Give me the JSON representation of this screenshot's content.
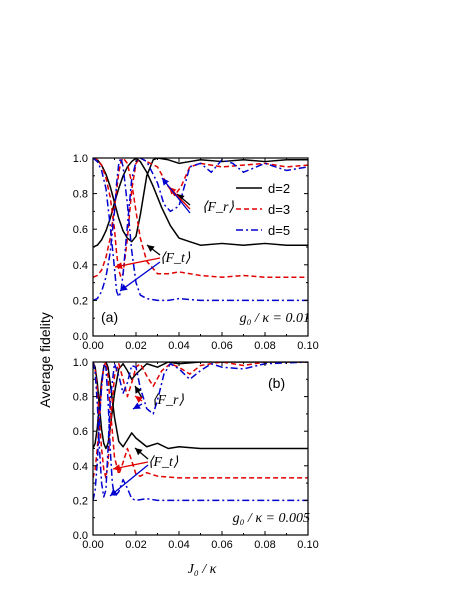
{
  "figure": {
    "ylabel": "Average fidelity",
    "xlabel": "J₀ / κ"
  },
  "legend": [
    "d=2",
    "d=3",
    "d=5"
  ],
  "colors": {
    "d2": "#000000",
    "d3": "#e00000",
    "d5": "#0000d0"
  },
  "chart_data": [
    {
      "type": "line",
      "panel_label": "(a)",
      "parameter_text": "g₀ / κ = 0.01",
      "xlim": [
        0,
        0.1
      ],
      "ylim": [
        0,
        1.0
      ],
      "xticks": [
        "0.00",
        "0.02",
        "0.04",
        "0.06",
        "0.08",
        "0.10"
      ],
      "yticks": [
        "0.0",
        "0.2",
        "0.4",
        "0.6",
        "0.8",
        "1.0"
      ],
      "annotations": [
        "⟨F_r⟩",
        "⟨F_t⟩"
      ],
      "series": [
        {
          "name": "d=2",
          "quantity": "F_t",
          "x": [
            0,
            0.002,
            0.004,
            0.006,
            0.008,
            0.01,
            0.012,
            0.014,
            0.016,
            0.018,
            0.02,
            0.022,
            0.025,
            0.028,
            0.032,
            0.036,
            0.04,
            0.045,
            0.05,
            0.06,
            0.07,
            0.08,
            0.09,
            0.1
          ],
          "y": [
            0.5,
            0.51,
            0.54,
            0.59,
            0.66,
            0.75,
            0.83,
            0.9,
            0.95,
            0.98,
            1.0,
            0.98,
            0.92,
            0.84,
            0.72,
            0.62,
            0.55,
            0.53,
            0.51,
            0.52,
            0.51,
            0.52,
            0.51,
            0.51
          ]
        },
        {
          "name": "d=2",
          "quantity": "F_r",
          "x": [
            0,
            0.002,
            0.004,
            0.006,
            0.008,
            0.01,
            0.012,
            0.014,
            0.016,
            0.018,
            0.02,
            0.022,
            0.025,
            0.028,
            0.03,
            0.035,
            0.04,
            0.045,
            0.05,
            0.06,
            0.07,
            0.08,
            0.09,
            0.1
          ],
          "y": [
            1.0,
            0.99,
            0.96,
            0.91,
            0.84,
            0.75,
            0.66,
            0.59,
            0.55,
            0.53,
            0.56,
            0.68,
            0.9,
            0.99,
            1.0,
            0.99,
            0.97,
            0.98,
            0.99,
            0.98,
            0.99,
            0.98,
            0.99,
            0.99
          ]
        },
        {
          "name": "d=3",
          "quantity": "F_t",
          "x": [
            0,
            0.002,
            0.004,
            0.006,
            0.008,
            0.01,
            0.011,
            0.012,
            0.013,
            0.014,
            0.016,
            0.018,
            0.02,
            0.022,
            0.025,
            0.03,
            0.035,
            0.04,
            0.05,
            0.06,
            0.07,
            0.08,
            0.09,
            0.1
          ],
          "y": [
            0.33,
            0.34,
            0.37,
            0.44,
            0.55,
            0.72,
            0.82,
            0.92,
            0.98,
            1.0,
            0.97,
            0.86,
            0.7,
            0.55,
            0.42,
            0.35,
            0.35,
            0.36,
            0.34,
            0.33,
            0.34,
            0.33,
            0.33,
            0.33
          ]
        },
        {
          "name": "d=3",
          "quantity": "F_r",
          "x": [
            0,
            0.002,
            0.004,
            0.006,
            0.008,
            0.01,
            0.011,
            0.012,
            0.013,
            0.014,
            0.016,
            0.018,
            0.02,
            0.022,
            0.025,
            0.03,
            0.035,
            0.038,
            0.041,
            0.045,
            0.05,
            0.06,
            0.07,
            0.08,
            0.09,
            0.1
          ],
          "y": [
            1.0,
            0.99,
            0.96,
            0.89,
            0.78,
            0.6,
            0.46,
            0.37,
            0.33,
            0.35,
            0.55,
            0.82,
            0.97,
            1.0,
            0.98,
            0.95,
            0.84,
            0.79,
            0.84,
            0.95,
            0.97,
            0.95,
            0.96,
            0.97,
            0.95,
            0.96
          ]
        },
        {
          "name": "d=5",
          "quantity": "F_t",
          "x": [
            0,
            0.002,
            0.004,
            0.006,
            0.008,
            0.01,
            0.011,
            0.012,
            0.013,
            0.014,
            0.016,
            0.018,
            0.02,
            0.022,
            0.025,
            0.03,
            0.035,
            0.04,
            0.05,
            0.06,
            0.07,
            0.08,
            0.09,
            0.1
          ],
          "y": [
            0.2,
            0.21,
            0.25,
            0.33,
            0.47,
            0.7,
            0.86,
            0.97,
            1.0,
            0.95,
            0.74,
            0.48,
            0.3,
            0.23,
            0.21,
            0.2,
            0.2,
            0.21,
            0.2,
            0.2,
            0.2,
            0.2,
            0.2,
            0.2
          ]
        },
        {
          "name": "d=5",
          "quantity": "F_r",
          "x": [
            0,
            0.002,
            0.004,
            0.006,
            0.008,
            0.01,
            0.011,
            0.012,
            0.013,
            0.014,
            0.016,
            0.018,
            0.02,
            0.022,
            0.025,
            0.03,
            0.033,
            0.036,
            0.04,
            0.045,
            0.05,
            0.055,
            0.06,
            0.065,
            0.07,
            0.08,
            0.09,
            0.1
          ],
          "y": [
            1.0,
            0.98,
            0.93,
            0.83,
            0.62,
            0.38,
            0.25,
            0.22,
            0.25,
            0.35,
            0.62,
            0.88,
            0.98,
            1.0,
            0.98,
            0.86,
            0.74,
            0.7,
            0.73,
            0.95,
            0.97,
            0.92,
            0.99,
            0.97,
            0.92,
            0.97,
            0.93,
            0.95
          ]
        }
      ]
    },
    {
      "type": "line",
      "panel_label": "(b)",
      "parameter_text": "g₀ / κ = 0.005",
      "xlim": [
        0,
        0.1
      ],
      "ylim": [
        0,
        1.0
      ],
      "xticks": [
        "0.00",
        "0.02",
        "0.04",
        "0.06",
        "0.08",
        "0.10"
      ],
      "yticks": [
        "0.0",
        "0.2",
        "0.4",
        "0.6",
        "0.8",
        "1.0"
      ],
      "annotations": [
        "⟨F_r⟩",
        "⟨F_t⟩"
      ],
      "series": [
        {
          "name": "d=2",
          "quantity": "F_t",
          "x": [
            0,
            0.001,
            0.002,
            0.003,
            0.004,
            0.005,
            0.006,
            0.007,
            0.008,
            0.01,
            0.012,
            0.014,
            0.016,
            0.018,
            0.02,
            0.025,
            0.03,
            0.035,
            0.04,
            0.05,
            0.06,
            0.07,
            0.08,
            0.1
          ],
          "y": [
            0.5,
            0.53,
            0.62,
            0.76,
            0.89,
            0.97,
            1.0,
            0.97,
            0.88,
            0.68,
            0.54,
            0.51,
            0.55,
            0.59,
            0.56,
            0.51,
            0.53,
            0.5,
            0.51,
            0.5,
            0.5,
            0.5,
            0.5,
            0.5
          ]
        },
        {
          "name": "d=2",
          "quantity": "F_r",
          "x": [
            0,
            0.001,
            0.002,
            0.003,
            0.004,
            0.005,
            0.006,
            0.007,
            0.008,
            0.01,
            0.012,
            0.014,
            0.016,
            0.018,
            0.02,
            0.025,
            0.03,
            0.035,
            0.04,
            0.05,
            0.06,
            0.07,
            0.08,
            0.1
          ],
          "y": [
            1.0,
            0.97,
            0.88,
            0.74,
            0.61,
            0.53,
            0.5,
            0.53,
            0.62,
            0.82,
            0.96,
            0.99,
            0.95,
            0.9,
            0.93,
            0.99,
            0.97,
            1.0,
            0.99,
            1.0,
            1.0,
            1.0,
            1.0,
            1.0
          ]
        },
        {
          "name": "d=3",
          "quantity": "F_t",
          "x": [
            0,
            0.001,
            0.002,
            0.003,
            0.004,
            0.005,
            0.006,
            0.007,
            0.008,
            0.01,
            0.012,
            0.014,
            0.016,
            0.018,
            0.02,
            0.022,
            0.025,
            0.03,
            0.04,
            0.05,
            0.06,
            0.08,
            0.1
          ],
          "y": [
            0.33,
            0.38,
            0.5,
            0.68,
            0.86,
            0.97,
            1.0,
            0.92,
            0.74,
            0.45,
            0.35,
            0.42,
            0.5,
            0.43,
            0.35,
            0.34,
            0.36,
            0.34,
            0.33,
            0.33,
            0.33,
            0.33,
            0.33
          ]
        },
        {
          "name": "d=3",
          "quantity": "F_r",
          "x": [
            0,
            0.001,
            0.002,
            0.003,
            0.004,
            0.005,
            0.006,
            0.007,
            0.008,
            0.01,
            0.012,
            0.014,
            0.016,
            0.018,
            0.02,
            0.022,
            0.025,
            0.028,
            0.032,
            0.036,
            0.04,
            0.045,
            0.05,
            0.06,
            0.07,
            0.08,
            0.1
          ],
          "y": [
            1.0,
            0.96,
            0.84,
            0.65,
            0.5,
            0.38,
            0.33,
            0.42,
            0.62,
            0.92,
            0.99,
            0.9,
            0.8,
            0.88,
            0.97,
            0.99,
            0.92,
            0.86,
            0.95,
            0.99,
            0.97,
            0.93,
            0.98,
            1.0,
            0.98,
            1.0,
            1.0
          ]
        },
        {
          "name": "d=5",
          "quantity": "F_t",
          "x": [
            0,
            0.001,
            0.002,
            0.003,
            0.004,
            0.005,
            0.006,
            0.007,
            0.008,
            0.009,
            0.01,
            0.012,
            0.014,
            0.016,
            0.018,
            0.02,
            0.025,
            0.03,
            0.04,
            0.05,
            0.06,
            0.08,
            0.1
          ],
          "y": [
            0.2,
            0.26,
            0.42,
            0.65,
            0.86,
            0.98,
            0.97,
            0.78,
            0.5,
            0.3,
            0.22,
            0.25,
            0.32,
            0.27,
            0.21,
            0.2,
            0.21,
            0.2,
            0.2,
            0.2,
            0.2,
            0.2,
            0.2
          ]
        },
        {
          "name": "d=5",
          "quantity": "F_r",
          "x": [
            0,
            0.001,
            0.002,
            0.003,
            0.004,
            0.005,
            0.006,
            0.007,
            0.008,
            0.01,
            0.012,
            0.014,
            0.016,
            0.018,
            0.02,
            0.022,
            0.025,
            0.028,
            0.03,
            0.033,
            0.036,
            0.04,
            0.045,
            0.05,
            0.055,
            0.06,
            0.07,
            0.08,
            0.1
          ],
          "y": [
            1.0,
            0.94,
            0.76,
            0.5,
            0.3,
            0.22,
            0.26,
            0.5,
            0.78,
            0.99,
            0.92,
            0.82,
            0.88,
            0.98,
            0.97,
            0.85,
            0.73,
            0.7,
            0.78,
            0.93,
            0.99,
            0.96,
            0.9,
            0.95,
            0.99,
            0.97,
            0.96,
            0.99,
            1.0
          ]
        }
      ]
    }
  ]
}
